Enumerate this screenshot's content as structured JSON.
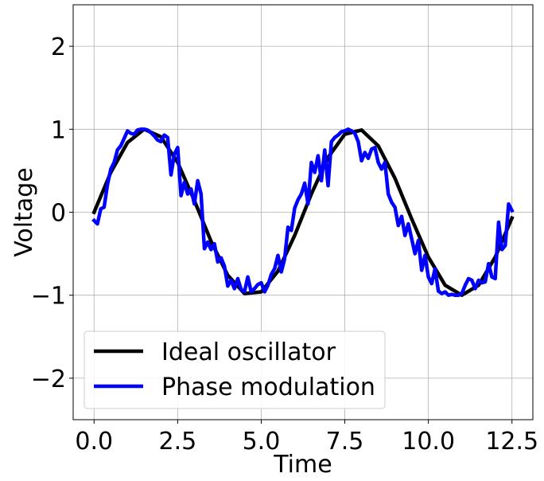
{
  "chart_data": {
    "type": "line",
    "xlabel": "Time",
    "ylabel": "Voltage",
    "xlim": [
      -0.625,
      13.125
    ],
    "ylim": [
      -2.5,
      2.5
    ],
    "x_ticks": [
      0.0,
      2.5,
      5.0,
      7.5,
      10.0,
      12.5
    ],
    "x_tick_labels": [
      "0.0",
      "2.5",
      "5.0",
      "7.5",
      "10.0",
      "12.5"
    ],
    "y_ticks": [
      -2,
      -1,
      0,
      1,
      2
    ],
    "y_tick_labels": [
      "−2",
      "−1",
      "0",
      "1",
      "2"
    ],
    "grid": true,
    "legend_position": "lower-left",
    "series": [
      {
        "name": "Ideal oscillator",
        "color": "#000000",
        "x": [
          0.0,
          0.5,
          1.0,
          1.5,
          2.0,
          2.5,
          3.0,
          3.5,
          4.0,
          4.5,
          5.0,
          5.5,
          6.0,
          6.5,
          7.0,
          7.5,
          8.0,
          8.5,
          9.0,
          9.5,
          10.0,
          10.5,
          11.0,
          11.5,
          12.0,
          12.5
        ],
        "y": [
          0.0,
          0.48,
          0.84,
          1.0,
          0.91,
          0.6,
          0.14,
          -0.35,
          -0.76,
          -0.98,
          -0.96,
          -0.71,
          -0.28,
          0.22,
          0.66,
          0.94,
          0.99,
          0.8,
          0.41,
          -0.08,
          -0.54,
          -0.88,
          -1.0,
          -0.88,
          -0.54,
          -0.07
        ]
      },
      {
        "name": "Phase modulation",
        "color": "#0000ff",
        "x": [
          0.0,
          0.1,
          0.2,
          0.3,
          0.4,
          0.5,
          0.6,
          0.7,
          0.8,
          0.9,
          1.0,
          1.1,
          1.2,
          1.3,
          1.4,
          1.5,
          1.6,
          1.7,
          1.8,
          1.9,
          2.0,
          2.1,
          2.2,
          2.3,
          2.4,
          2.5,
          2.6,
          2.7,
          2.8,
          2.9,
          3.0,
          3.1,
          3.2,
          3.3,
          3.4,
          3.5,
          3.6,
          3.7,
          3.8,
          3.9,
          4.0,
          4.1,
          4.2,
          4.3,
          4.4,
          4.5,
          4.6,
          4.7,
          4.8,
          4.9,
          5.0,
          5.1,
          5.2,
          5.3,
          5.4,
          5.5,
          5.6,
          5.7,
          5.8,
          5.9,
          6.0,
          6.1,
          6.2,
          6.3,
          6.4,
          6.5,
          6.6,
          6.7,
          6.8,
          6.9,
          7.0,
          7.1,
          7.2,
          7.3,
          7.4,
          7.5,
          7.6,
          7.7,
          7.8,
          7.9,
          8.0,
          8.1,
          8.2,
          8.3,
          8.4,
          8.5,
          8.6,
          8.7,
          8.8,
          8.9,
          9.0,
          9.1,
          9.2,
          9.3,
          9.4,
          9.5,
          9.6,
          9.7,
          9.8,
          9.9,
          10.0,
          10.1,
          10.2,
          10.3,
          10.4,
          10.5,
          10.6,
          10.7,
          10.8,
          10.9,
          11.0,
          11.1,
          11.2,
          11.3,
          11.4,
          11.5,
          11.6,
          11.7,
          11.8,
          11.9,
          12.0,
          12.1,
          12.2,
          12.3,
          12.4,
          12.5
        ],
        "y": [
          -0.1,
          -0.14,
          0.04,
          0.06,
          0.33,
          0.52,
          0.6,
          0.75,
          0.8,
          0.89,
          0.98,
          0.95,
          0.94,
          0.99,
          1.0,
          1.0,
          0.99,
          0.96,
          0.92,
          0.87,
          0.85,
          0.93,
          0.9,
          0.45,
          0.7,
          0.78,
          0.2,
          0.36,
          0.22,
          0.28,
          0.1,
          0.38,
          0.22,
          -0.44,
          -0.36,
          -0.45,
          -0.38,
          -0.6,
          -0.55,
          -0.65,
          -0.89,
          -0.82,
          -0.92,
          -0.8,
          -0.93,
          -0.96,
          -0.78,
          -0.96,
          -0.92,
          -0.87,
          -0.85,
          -0.96,
          -0.88,
          -0.75,
          -0.68,
          -0.52,
          -0.72,
          -0.56,
          -0.18,
          -0.22,
          0.05,
          0.15,
          0.22,
          0.35,
          0.1,
          0.6,
          0.48,
          0.68,
          0.38,
          0.75,
          0.32,
          0.85,
          0.9,
          0.93,
          0.97,
          0.98,
          1.0,
          0.98,
          0.95,
          0.85,
          0.62,
          0.72,
          0.65,
          0.76,
          0.78,
          0.6,
          0.52,
          0.6,
          0.22,
          0.12,
          0.06,
          -0.16,
          -0.05,
          -0.28,
          -0.14,
          -0.32,
          -0.5,
          -0.34,
          -0.7,
          -0.52,
          -0.78,
          -0.86,
          -0.68,
          -0.95,
          -0.98,
          -0.96,
          -1.0,
          -0.99,
          -1.0,
          -1.0,
          -0.98,
          -0.88,
          -0.8,
          -0.82,
          -0.92,
          -0.82,
          -0.85,
          -0.84,
          -0.62,
          -0.78,
          -0.8,
          -0.12,
          -0.45,
          -0.4,
          0.1,
          0.02
        ]
      }
    ]
  }
}
